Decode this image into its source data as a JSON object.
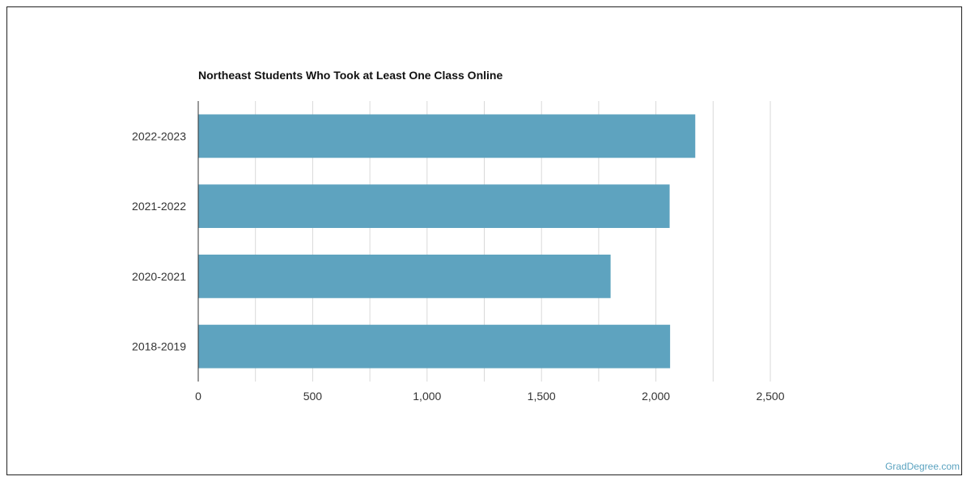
{
  "chart_data": {
    "type": "bar",
    "orientation": "horizontal",
    "title": "Northeast Students Who Took at Least One Class Online",
    "categories": [
      "2022-2023",
      "2021-2022",
      "2020-2021",
      "2018-2019"
    ],
    "values": [
      2172,
      2060,
      1802,
      2062
    ],
    "xlim": [
      0,
      2500
    ],
    "x_ticks": [
      0,
      500,
      1000,
      1500,
      2000,
      2500
    ],
    "x_tick_labels": [
      "0",
      "500",
      "1,000",
      "1,500",
      "2,000",
      "2,500"
    ],
    "xlabel": "",
    "ylabel": "",
    "grid": true,
    "bar_color": "#5ea3bf",
    "grid_color": "#d9d9d9",
    "axis_color": "#333333"
  },
  "watermark": "GradDegree.com"
}
